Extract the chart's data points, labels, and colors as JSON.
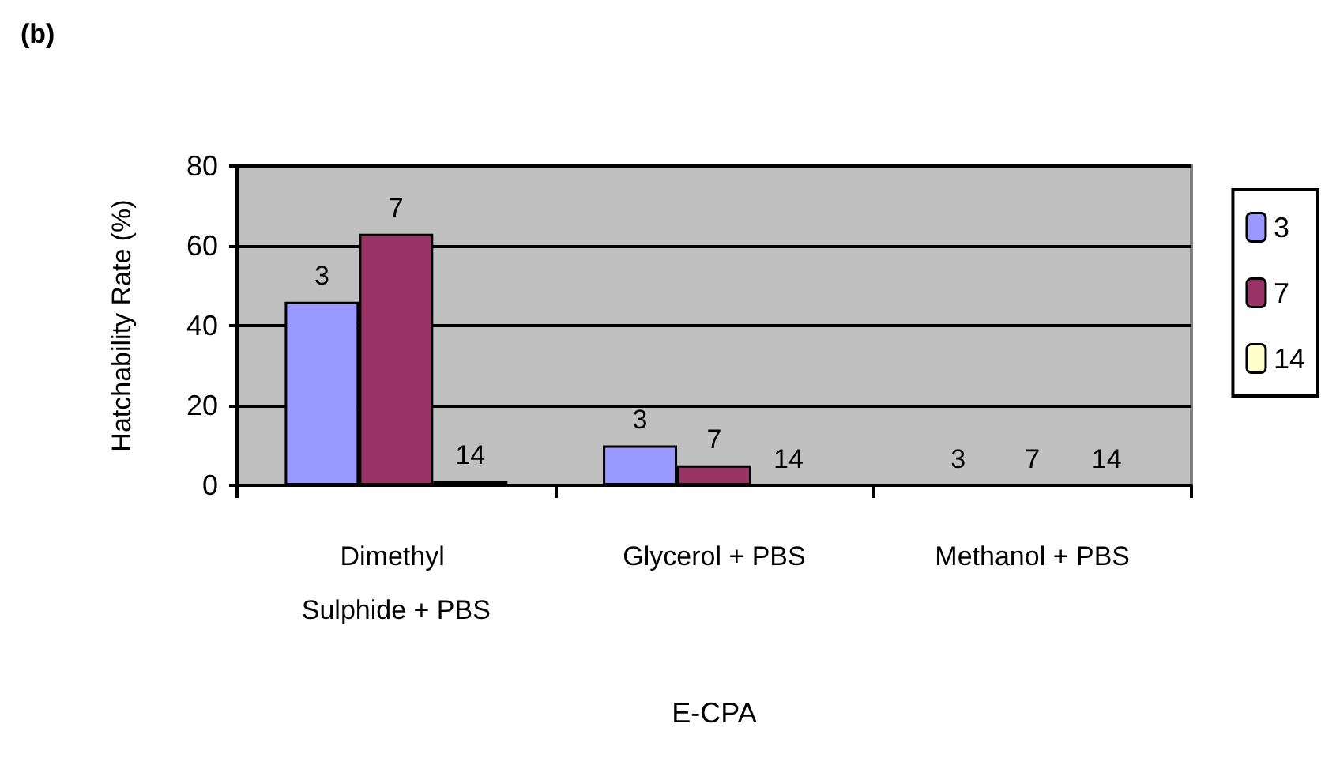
{
  "chart_data": {
    "type": "bar",
    "title": "(b)",
    "xlabel": "E-CPA",
    "ylabel": "Hatchability Rate (%)",
    "categories": [
      "Dimethyl Sulphide + PBS",
      "Glycerol + PBS",
      "Methanol + PBS"
    ],
    "series": [
      {
        "name": "3",
        "color": "#9999ff",
        "values": [
          46,
          10,
          0
        ]
      },
      {
        "name": "7",
        "color": "#993366",
        "values": [
          63,
          5,
          0
        ]
      },
      {
        "name": "14",
        "color": "#ffffcc",
        "values": [
          1,
          0,
          0
        ]
      }
    ],
    "annotations": [
      "3",
      "7",
      "14",
      "3",
      "7",
      "14",
      "3",
      "7",
      "14"
    ],
    "ylim": [
      0,
      80
    ],
    "yticks": [
      0,
      20,
      40,
      60,
      80
    ],
    "grid": "y",
    "legend": "right"
  }
}
